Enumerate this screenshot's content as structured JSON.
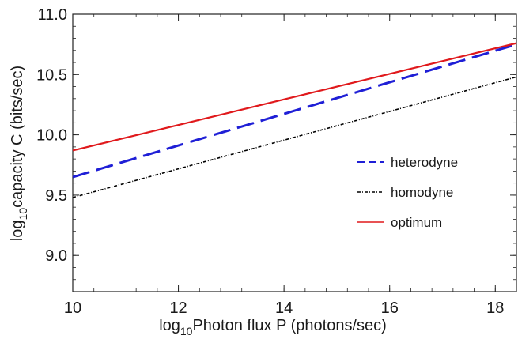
{
  "chart_data": {
    "type": "line",
    "title": "",
    "xlabel": {
      "prefix": "log",
      "subscript": "10",
      "text": "Photon flux P (photons/sec)"
    },
    "ylabel": {
      "prefix": "log",
      "subscript": "10",
      "text": "capacity C (bits/sec)"
    },
    "xlim": [
      10,
      18.4
    ],
    "ylim": [
      8.7,
      11.0
    ],
    "x_ticks": [
      10,
      12,
      14,
      16,
      18
    ],
    "x_tick_labels": [
      "10",
      "12",
      "14",
      "16",
      "18"
    ],
    "y_ticks": [
      9.0,
      9.5,
      10.0,
      10.5,
      11.0
    ],
    "y_tick_labels": [
      "9.0",
      "9.5",
      "10.0",
      "10.5",
      "11.0"
    ],
    "legend_position": "right",
    "grid": false,
    "series": [
      {
        "name": "heterodyne",
        "color": "#1f1fd6",
        "style": "dashed",
        "x": [
          10,
          18.4
        ],
        "y": [
          9.65,
          10.75
        ]
      },
      {
        "name": "homodyne",
        "color": "#000000",
        "style": "dash-dot",
        "x": [
          10,
          18.4
        ],
        "y": [
          9.48,
          10.48
        ]
      },
      {
        "name": "optimum",
        "color": "#e0191c",
        "style": "solid",
        "x": [
          10,
          18.4
        ],
        "y": [
          9.87,
          10.76
        ]
      }
    ]
  }
}
